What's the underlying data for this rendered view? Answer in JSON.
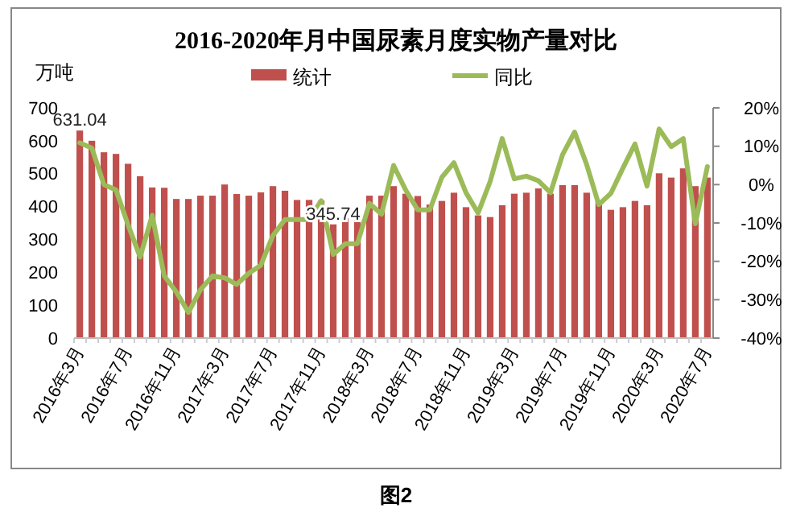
{
  "chart_data": {
    "type": "bar",
    "title": "2016-2020年月中国尿素月度实物产量对比",
    "ylabel": "万吨",
    "categories": [
      "2016年3月",
      null,
      null,
      null,
      "2016年7月",
      null,
      null,
      null,
      "2016年11月",
      null,
      null,
      null,
      "2017年3月",
      null,
      null,
      null,
      "2017年7月",
      null,
      null,
      null,
      "2017年11月",
      null,
      null,
      null,
      "2018年3月",
      null,
      null,
      null,
      "2018年7月",
      null,
      null,
      null,
      "2018年11月",
      null,
      null,
      null,
      "2019年3月",
      null,
      null,
      null,
      "2019年7月",
      null,
      null,
      null,
      "2019年11月",
      null,
      null,
      null,
      "2020年3月",
      null,
      null,
      null,
      "2020年7月"
    ],
    "series": [
      {
        "name": "统计",
        "color": "#c0504d",
        "values": [
          631.04,
          600,
          565,
          560,
          530,
          492,
          458,
          457,
          423,
          423,
          433,
          433,
          467,
          438,
          433,
          443,
          462,
          448,
          420,
          420,
          418,
          345.74,
          365,
          365,
          433,
          433,
          462,
          439,
          432,
          406,
          417,
          442,
          398,
          373,
          368,
          404,
          439,
          442,
          455,
          439,
          465,
          465,
          442,
          417,
          390,
          398,
          417,
          404,
          501,
          488,
          516,
          462,
          488
        ],
        "value_labels": [
          "631.04",
          null,
          null,
          null,
          null,
          null,
          null,
          null,
          null,
          null,
          null,
          null,
          null,
          null,
          null,
          null,
          null,
          null,
          null,
          null,
          null,
          "345.74",
          null,
          null,
          null,
          null,
          null,
          null,
          null,
          null,
          null,
          null,
          null,
          null,
          null,
          null,
          null,
          null,
          null,
          null,
          null,
          null,
          null,
          null,
          null,
          null,
          null,
          null,
          null,
          null,
          null,
          null,
          null
        ]
      },
      {
        "name": "同比",
        "type": "line",
        "axis": "y2",
        "color": "#9bbb59",
        "values": [
          10.9,
          9.5,
          0,
          -1.4,
          -10.5,
          -18.9,
          -8,
          -23.8,
          -28,
          -33.3,
          -27.4,
          -23.8,
          -24.3,
          -26,
          -23.1,
          -21,
          -13.3,
          -9.1,
          -9.1,
          -9.1,
          -4.2,
          -18.2,
          -15.4,
          -15.4,
          -4.9,
          -7.7,
          5,
          -1.4,
          -6.6,
          -6.6,
          1.9,
          5.7,
          -2.1,
          -7.4,
          0.8,
          12,
          1.5,
          2.2,
          1,
          -2.1,
          7.8,
          13.7,
          5.2,
          -5.2,
          -2.3,
          4.3,
          10.6,
          -0.4,
          14.5,
          9.9,
          12,
          -10.2,
          4.7
        ]
      }
    ],
    "ylim": [
      0,
      700
    ],
    "yticks": [
      0,
      100,
      200,
      300,
      400,
      500,
      600,
      700
    ],
    "y2lim": [
      -40,
      20
    ],
    "y2ticks": [
      {
        "value": -40,
        "label": "-40%"
      },
      {
        "value": -30,
        "label": "-30%"
      },
      {
        "value": -20,
        "label": "-20%"
      },
      {
        "value": -10,
        "label": "-10%"
      },
      {
        "value": 0,
        "label": "0%"
      },
      {
        "value": 10,
        "label": "10%"
      },
      {
        "value": 20,
        "label": "20%"
      }
    ],
    "legend": "top",
    "grid": false,
    "line_style": "solid",
    "marker": "none",
    "annotations": [
      "图2"
    ]
  }
}
